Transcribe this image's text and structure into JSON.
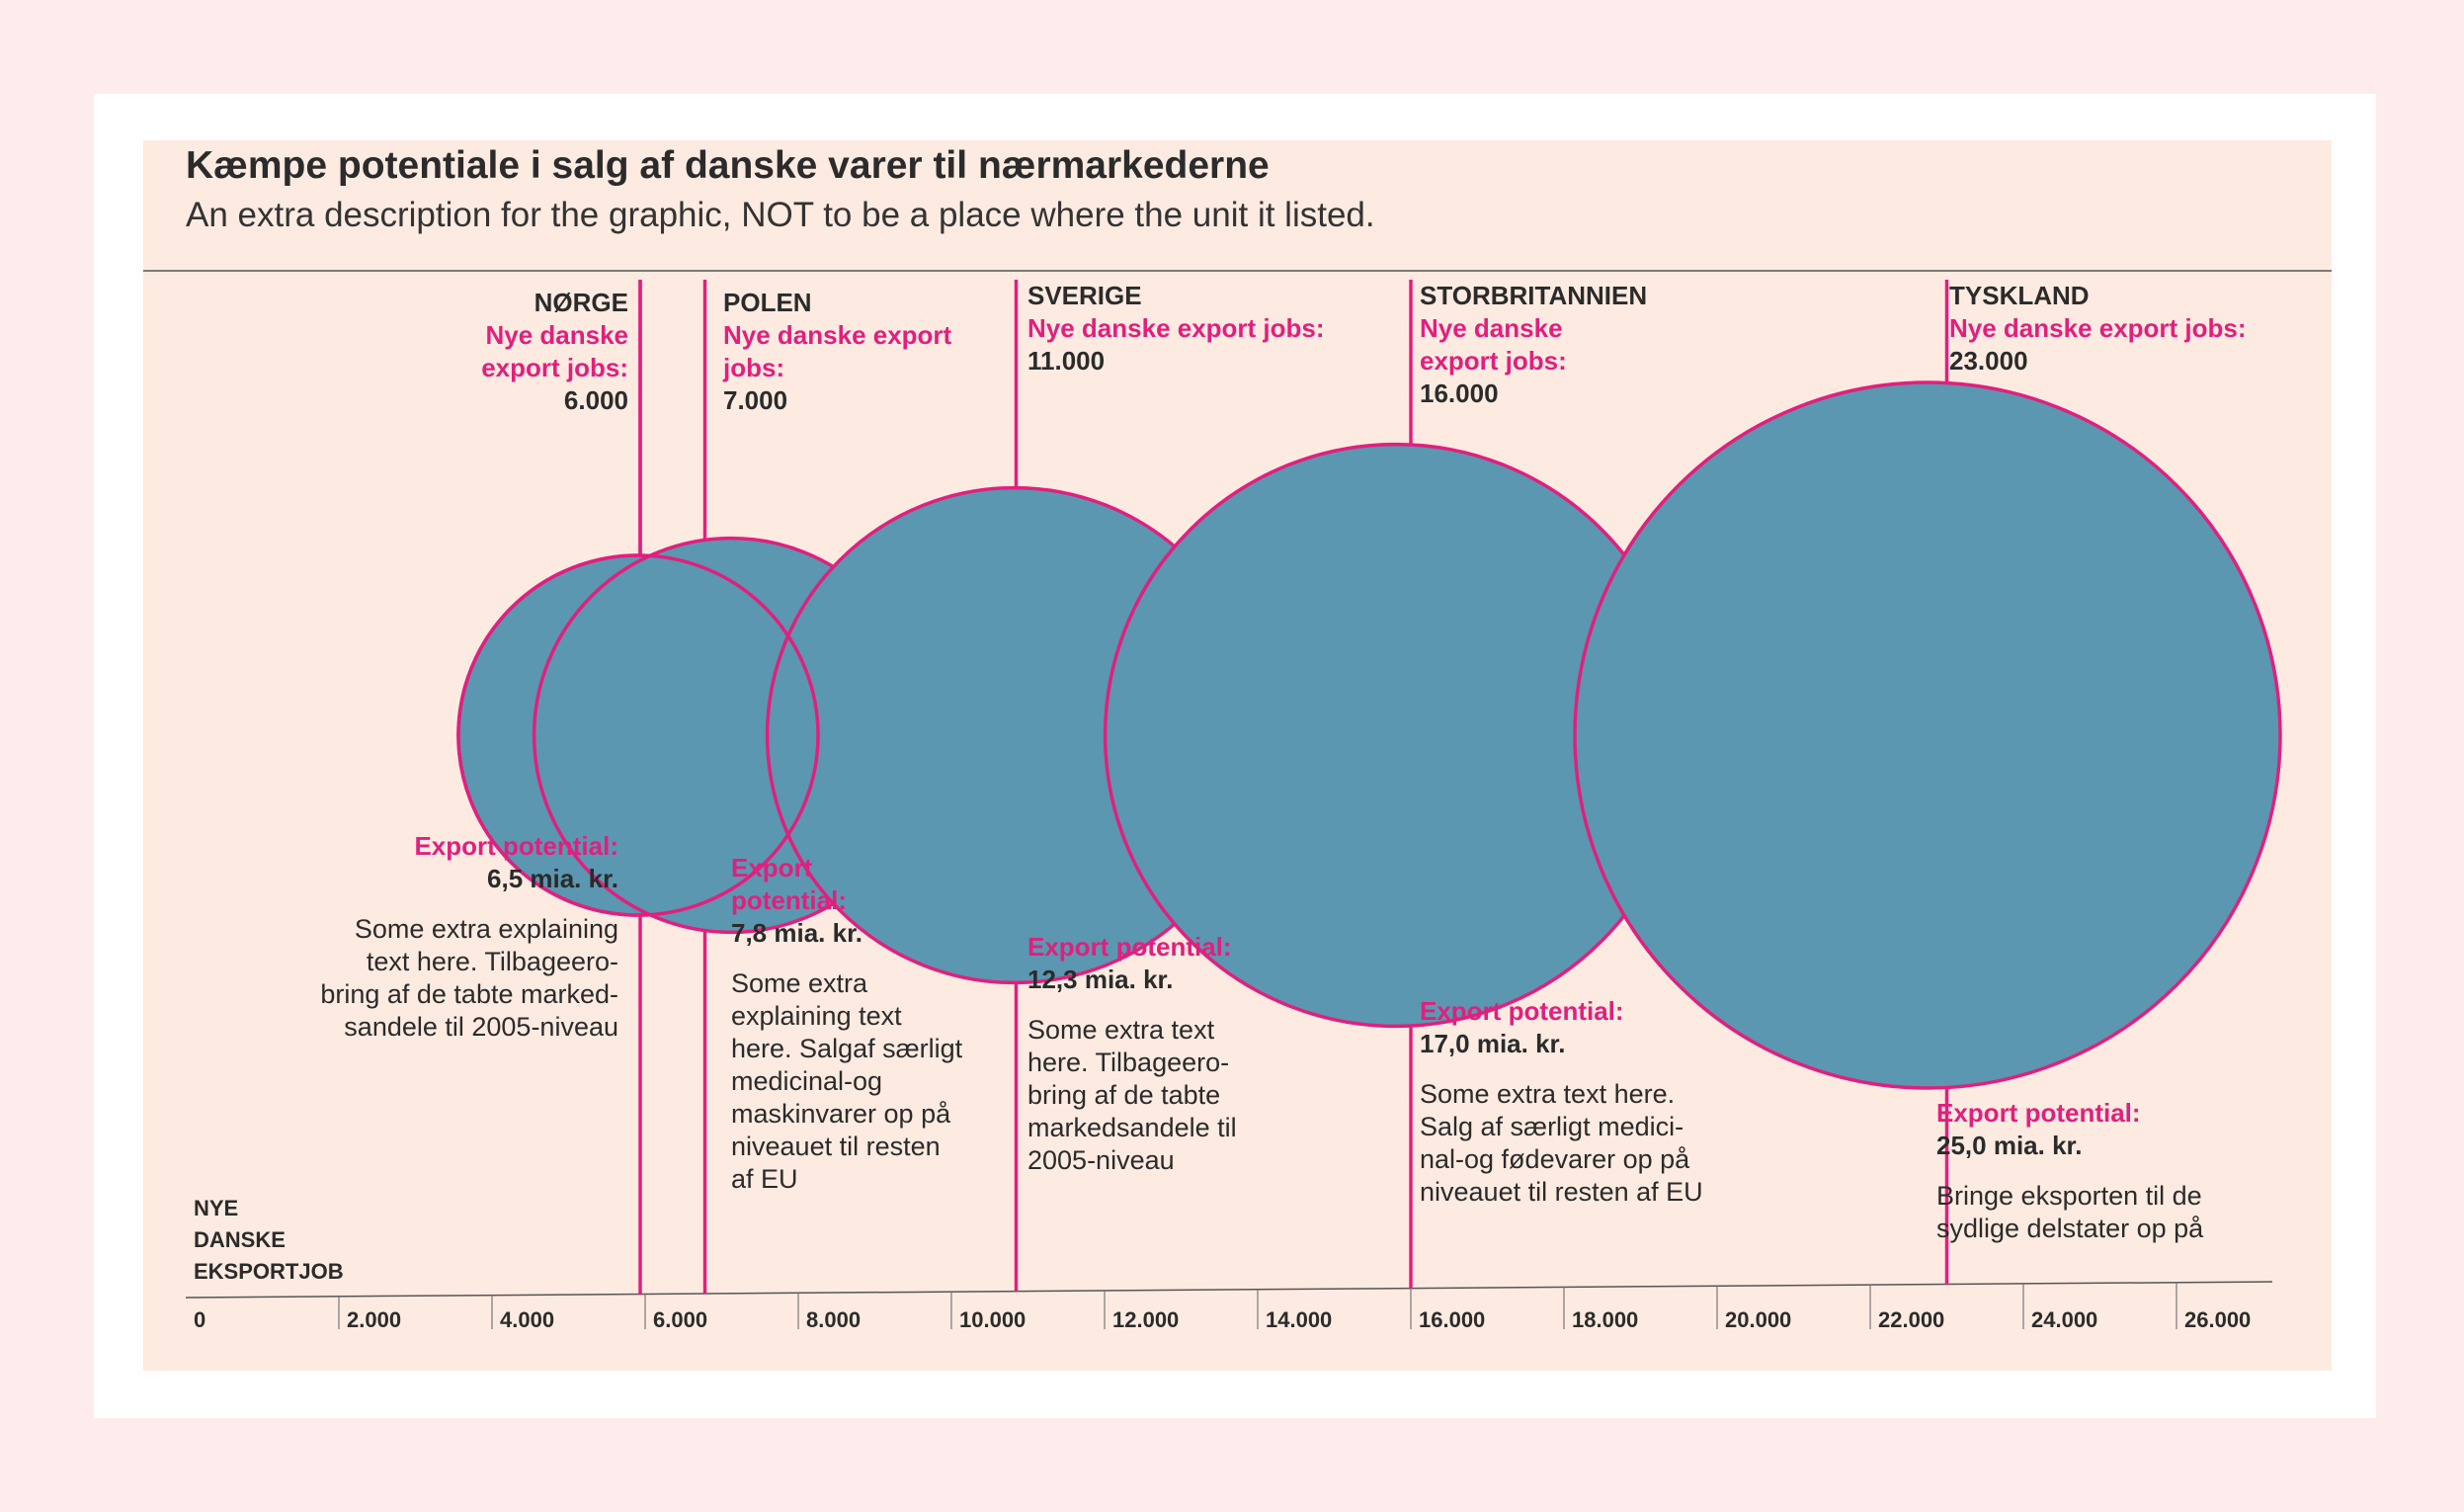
{
  "title": "Kæmpe potentiale i salg af danske varer til nærmarkederne",
  "subtitle": "An extra description for the graphic, NOT to be a place where the unit it listed.",
  "axis_label_lines": [
    "NYE",
    "DANSKE",
    "EKSPORTJOB"
  ],
  "colors": {
    "bubble_fill": "#5b97b0",
    "accent": "#e0207e",
    "panel": "#fdebe1",
    "text": "#2b2b2b"
  },
  "countries": [
    {
      "name": "NØRGE",
      "jobs_label_lines": [
        "Nye danske",
        "export jobs:"
      ],
      "jobs_value": "6.000",
      "potential_label_lines": [
        "Export potential:"
      ],
      "potential_value": "6,5 mia. kr.",
      "note_lines": [
        "Some extra explaining",
        "text here. Tilbageero-",
        "bring af de tabte marked-",
        "sandele til 2005-niveau"
      ]
    },
    {
      "name": "POLEN",
      "jobs_label_lines": [
        "Nye danske export",
        "jobs:"
      ],
      "jobs_value": "7.000",
      "potential_label_lines": [
        "Export",
        "potential:"
      ],
      "potential_value": "7,8 mia. kr.",
      "note_lines": [
        "Some extra",
        "explaining text",
        "here. Salgaf særligt",
        "medicinal-og",
        "maskinvarer op på",
        "niveauet til resten",
        "af EU"
      ]
    },
    {
      "name": "SVERIGE",
      "jobs_label_lines": [
        "Nye danske export jobs:"
      ],
      "jobs_value": "11.000",
      "potential_label_lines": [
        "Export potential:"
      ],
      "potential_value": "12,3  mia. kr.",
      "note_lines": [
        "Some extra text",
        "here. Tilbageero-",
        "bring af de tabte",
        "markedsandele til",
        "2005-niveau"
      ]
    },
    {
      "name": "STORBRITANNIEN",
      "jobs_label_lines": [
        "Nye danske",
        "export jobs:"
      ],
      "jobs_value": "16.000",
      "potential_label_lines": [
        "Export potential:"
      ],
      "potential_value": "17,0 mia. kr.",
      "note_lines": [
        "Some extra text here.",
        "Salg af særligt medici-",
        "nal-og fødevarer op på",
        "niveauet til resten af EU"
      ]
    },
    {
      "name": "TYSKLAND",
      "jobs_label_lines": [
        "Nye danske export jobs:"
      ],
      "jobs_value": "23.000",
      "potential_label_lines": [
        "Export potential:"
      ],
      "potential_value": "25,0 mia. kr.",
      "note_lines": [
        "Bringe eksporten til de",
        "sydlige delstater op på"
      ]
    }
  ],
  "chart_data": {
    "type": "scatter",
    "title": "Kæmpe potentiale i salg af danske varer til nærmarkederne",
    "subtitle": "An extra description for the graphic, NOT to be a place where the unit it listed.",
    "xlabel": "NYE DANSKE EKSPORTJOB",
    "ylabel": "",
    "xlim": [
      0,
      27000
    ],
    "x_ticks": [
      0,
      2000,
      4000,
      6000,
      8000,
      10000,
      12000,
      14000,
      16000,
      18000,
      20000,
      22000,
      24000,
      26000
    ],
    "x_tick_labels": [
      "0",
      "2.000",
      "4.000",
      "6.000",
      "8.000",
      "10.000",
      "12.000",
      "14.000",
      "16.000",
      "18.000",
      "20.000",
      "22.000",
      "24.000",
      "26.000"
    ],
    "grid": false,
    "bubble_size_unit": "mia. kr.",
    "points": [
      {
        "label": "NØRGE",
        "x": 6000,
        "size": 6.5
      },
      {
        "label": "POLEN",
        "x": 7000,
        "size": 7.8
      },
      {
        "label": "SVERIGE",
        "x": 11000,
        "size": 12.3
      },
      {
        "label": "STORBRITANNIEN",
        "x": 16000,
        "size": 17.0
      },
      {
        "label": "TYSKLAND",
        "x": 23000,
        "size": 25.0
      }
    ]
  }
}
